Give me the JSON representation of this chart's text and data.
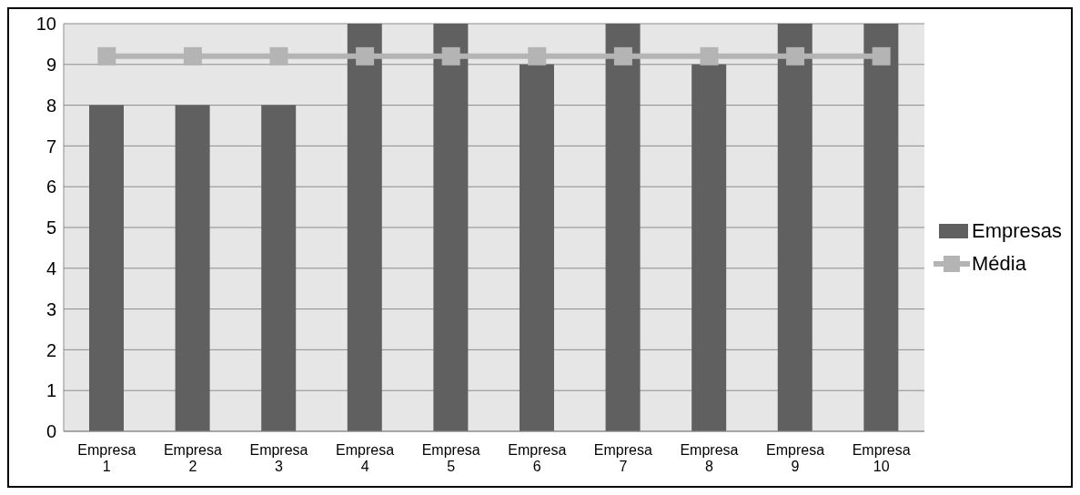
{
  "chart_data": {
    "type": "bar",
    "categories": [
      "Empresa 1",
      "Empresa 2",
      "Empresa 3",
      "Empresa 4",
      "Empresa 5",
      "Empresa 6",
      "Empresa 7",
      "Empresa 8",
      "Empresa 9",
      "Empresa 10"
    ],
    "series": [
      {
        "name": "Empresas",
        "color": "#606060",
        "values": [
          8,
          8,
          8,
          10,
          10,
          9,
          10,
          9,
          10,
          10
        ]
      },
      {
        "name": "Média",
        "type": "line",
        "color": "#b4b4b4",
        "values": [
          9.2,
          9.2,
          9.2,
          9.2,
          9.2,
          9.2,
          9.2,
          9.2,
          9.2,
          9.2
        ]
      }
    ],
    "ylim": [
      0,
      10
    ],
    "yticks": [
      0,
      1,
      2,
      3,
      4,
      5,
      6,
      7,
      8,
      9,
      10
    ],
    "grid": "y",
    "legend": "right",
    "marker": "square"
  }
}
